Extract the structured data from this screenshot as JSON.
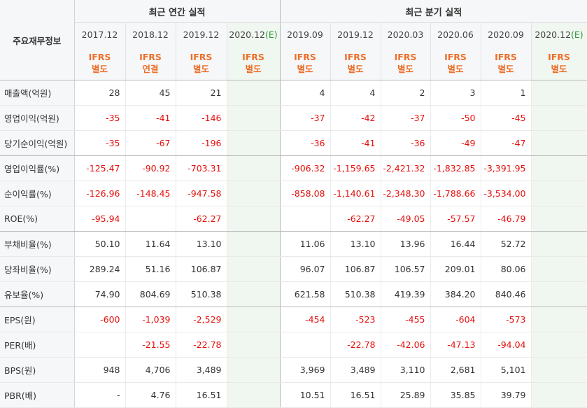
{
  "header": {
    "corner_label": "주요재무정보",
    "annual_group": "최근 연간 실적",
    "quarterly_group": "최근 분기 실적"
  },
  "periods": [
    {
      "label": "2017.12",
      "estimate": false,
      "ifrs_line1": "IFRS",
      "ifrs_line2": "별도"
    },
    {
      "label": "2018.12",
      "estimate": false,
      "ifrs_line1": "IFRS",
      "ifrs_line2": "연결"
    },
    {
      "label": "2019.12",
      "estimate": false,
      "ifrs_line1": "IFRS",
      "ifrs_line2": "별도"
    },
    {
      "label": "2020.12",
      "estimate": true,
      "estimate_mark": "(E)",
      "ifrs_line1": "IFRS",
      "ifrs_line2": "별도"
    },
    {
      "label": "2019.09",
      "estimate": false,
      "ifrs_line1": "IFRS",
      "ifrs_line2": "별도"
    },
    {
      "label": "2019.12",
      "estimate": false,
      "ifrs_line1": "IFRS",
      "ifrs_line2": "별도"
    },
    {
      "label": "2020.03",
      "estimate": false,
      "ifrs_line1": "IFRS",
      "ifrs_line2": "별도"
    },
    {
      "label": "2020.06",
      "estimate": false,
      "ifrs_line1": "IFRS",
      "ifrs_line2": "별도"
    },
    {
      "label": "2020.09",
      "estimate": false,
      "ifrs_line1": "IFRS",
      "ifrs_line2": "별도"
    },
    {
      "label": "2020.12",
      "estimate": true,
      "estimate_mark": "(E)",
      "ifrs_line1": "IFRS",
      "ifrs_line2": "별도"
    }
  ],
  "rows": [
    {
      "label": "매출액(억원)",
      "values": [
        "28",
        "45",
        "21",
        "",
        "4",
        "4",
        "2",
        "3",
        "1",
        ""
      ]
    },
    {
      "label": "영업이익(억원)",
      "values": [
        "-35",
        "-41",
        "-146",
        "",
        "-37",
        "-42",
        "-37",
        "-50",
        "-45",
        ""
      ]
    },
    {
      "label": "당기순이익(억원)",
      "values": [
        "-35",
        "-67",
        "-196",
        "",
        "-36",
        "-41",
        "-36",
        "-49",
        "-47",
        ""
      ],
      "group_end": true
    },
    {
      "label": "영업이익률(%)",
      "values": [
        "-125.47",
        "-90.92",
        "-703.31",
        "",
        "-906.32",
        "-1,159.65",
        "-2,421.32",
        "-1,832.85",
        "-3,391.95",
        ""
      ]
    },
    {
      "label": "순이익률(%)",
      "values": [
        "-126.96",
        "-148.45",
        "-947.58",
        "",
        "-858.08",
        "-1,140.61",
        "-2,348.30",
        "-1,788.66",
        "-3,534.00",
        ""
      ]
    },
    {
      "label": "ROE(%)",
      "values": [
        "-95.94",
        "",
        "-62.27",
        "",
        "",
        "-62.27",
        "-49.05",
        "-57.57",
        "-46.79",
        ""
      ],
      "group_end": true
    },
    {
      "label": "부채비율(%)",
      "values": [
        "50.10",
        "11.64",
        "13.10",
        "",
        "11.06",
        "13.10",
        "13.96",
        "16.44",
        "52.72",
        ""
      ]
    },
    {
      "label": "당좌비율(%)",
      "values": [
        "289.24",
        "51.16",
        "106.87",
        "",
        "96.07",
        "106.87",
        "106.57",
        "209.01",
        "80.06",
        ""
      ]
    },
    {
      "label": "유보율(%)",
      "values": [
        "74.90",
        "804.69",
        "510.38",
        "",
        "621.58",
        "510.38",
        "419.39",
        "384.20",
        "840.46",
        ""
      ],
      "group_end": true
    },
    {
      "label": "EPS(원)",
      "values": [
        "-600",
        "-1,039",
        "-2,529",
        "",
        "-454",
        "-523",
        "-455",
        "-604",
        "-573",
        ""
      ]
    },
    {
      "label": "PER(배)",
      "values": [
        "",
        "-21.55",
        "-22.78",
        "",
        "",
        "-22.78",
        "-42.06",
        "-47.13",
        "-94.04",
        ""
      ]
    },
    {
      "label": "BPS(원)",
      "values": [
        "948",
        "4,706",
        "3,489",
        "",
        "3,969",
        "3,489",
        "3,110",
        "2,681",
        "5,101",
        ""
      ]
    },
    {
      "label": "PBR(배)",
      "values": [
        "-",
        "4.76",
        "16.51",
        "",
        "10.51",
        "16.51",
        "25.89",
        "35.85",
        "39.79",
        ""
      ]
    }
  ],
  "colors": {
    "negative": "#e5100d",
    "ifrs": "#ed6e28",
    "estimate": "#2a9a35",
    "header_bg": "#f6f7f9"
  }
}
